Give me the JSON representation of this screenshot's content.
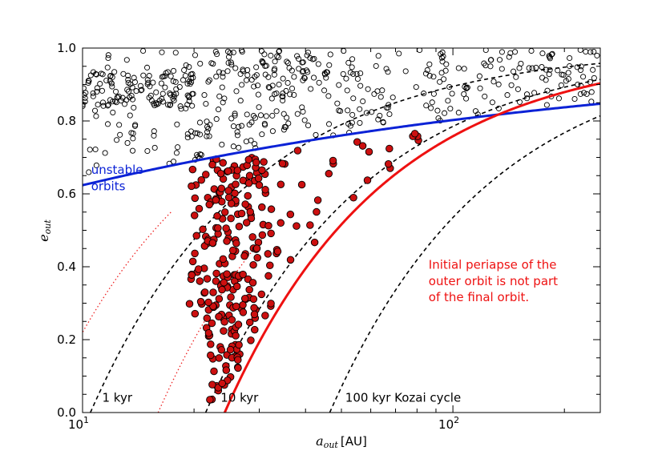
{
  "chart_data": {
    "type": "scatter",
    "title": "",
    "xlabel": {
      "symbol": "a",
      "subscript": "out",
      "unit": "[AU]"
    },
    "ylabel": {
      "symbol": "e",
      "subscript": "out"
    },
    "xscale": "log",
    "xlim": [
      10,
      250
    ],
    "ylim": [
      0.0,
      1.0
    ],
    "x_tick_labels": [
      {
        "value": 10,
        "base": "10",
        "exp": "1"
      },
      {
        "value": 100,
        "base": "10",
        "exp": "2"
      }
    ],
    "y_ticks": [
      0.0,
      0.2,
      0.4,
      0.6,
      0.8,
      1.0
    ],
    "y_tick_labels": [
      "0.0",
      "0.2",
      "0.4",
      "0.6",
      "0.8",
      "1.0"
    ],
    "colors": {
      "blue_curve": "#0b22d6",
      "red_curve": "#ee1111",
      "red_fill": "#cc1010",
      "dotted": "#ee2222",
      "dashed": "#000000"
    },
    "curves": {
      "stability_limit": {
        "style": "solid-blue",
        "a_crit": 30.0,
        "q_crit": 8.3,
        "a_max": 250
      },
      "final_periapse_limit": {
        "style": "solid-red",
        "q": 24.2,
        "a_min": 24.2,
        "a_max": 250
      },
      "kozai_1kyr": {
        "style": "dashed-black",
        "q": 10.5,
        "a_max": 250
      },
      "kozai_10kyr": {
        "style": "dashed-black",
        "q": 21.5,
        "a_max": 250
      },
      "kozai_100kyr": {
        "style": "dashed-black",
        "q": 46.5,
        "a_max": 250
      },
      "dotted_1": {
        "style": "dotted-red",
        "q": 7.8,
        "a_max": 17.5
      },
      "dotted_2": {
        "style": "dotted-red",
        "q": 16.0,
        "a_max": 30.5
      }
    },
    "point_generation": {
      "seed": 7,
      "open_count": 520,
      "filled_count": 270
    },
    "annotations": [
      {
        "key": "unstable_1",
        "text": "unstable",
        "color": "#0b22d6",
        "x": 10.55,
        "y": 0.655
      },
      {
        "key": "unstable_2",
        "text": "orbits",
        "color": "#0b22d6",
        "x": 10.55,
        "y": 0.61
      },
      {
        "key": "periapse_1",
        "text": "Initial periapse of the",
        "color": "#ee1111",
        "x": 86,
        "y": 0.395
      },
      {
        "key": "periapse_2",
        "text": "outer orbit is not part",
        "color": "#ee1111",
        "x": 86,
        "y": 0.35
      },
      {
        "key": "periapse_3",
        "text": "of the final orbit.",
        "color": "#ee1111",
        "x": 86,
        "y": 0.305
      },
      {
        "key": "kozai_1",
        "text": "1 kyr",
        "color": "#000000",
        "x": 11.3,
        "y": 0.03
      },
      {
        "key": "kozai_10",
        "text": "10 kyr",
        "color": "#000000",
        "x": 23.6,
        "y": 0.03
      },
      {
        "key": "kozai_100",
        "text": "100 kyr Kozai cycle",
        "color": "#000000",
        "x": 51.2,
        "y": 0.03
      }
    ]
  }
}
